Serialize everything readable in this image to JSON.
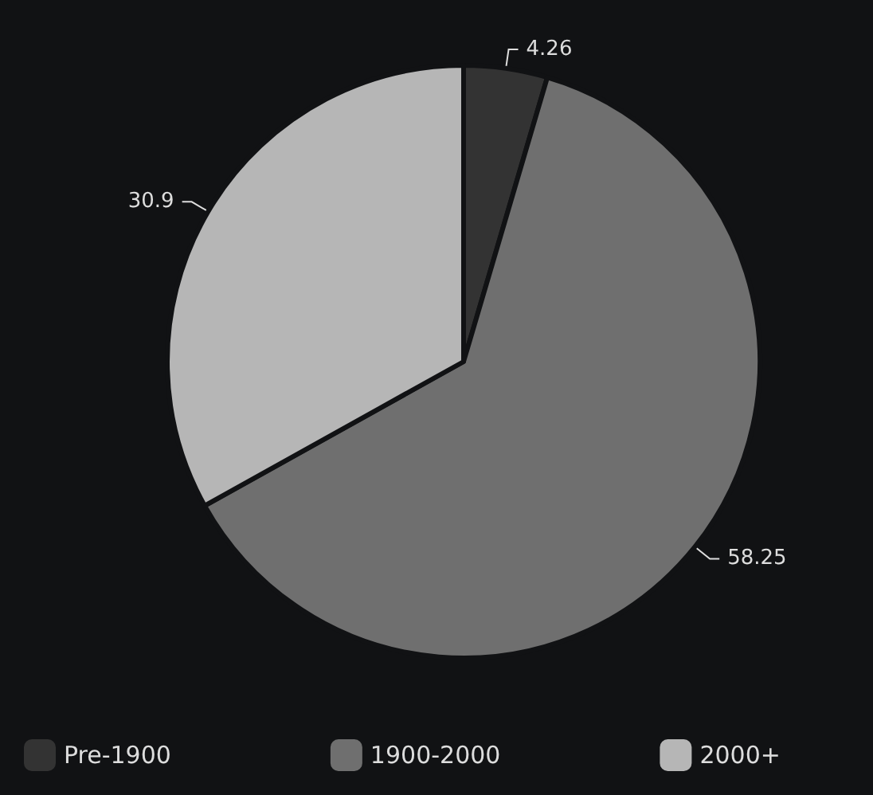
{
  "chart_data": {
    "type": "pie",
    "categories": [
      "Pre-1900",
      "1900-2000",
      "2000+"
    ],
    "values": [
      4.26,
      58.25,
      30.9
    ],
    "colors": [
      "#333333",
      "#6f6f6f",
      "#b6b6b6"
    ],
    "data_labels": true,
    "legend": "bottom"
  }
}
